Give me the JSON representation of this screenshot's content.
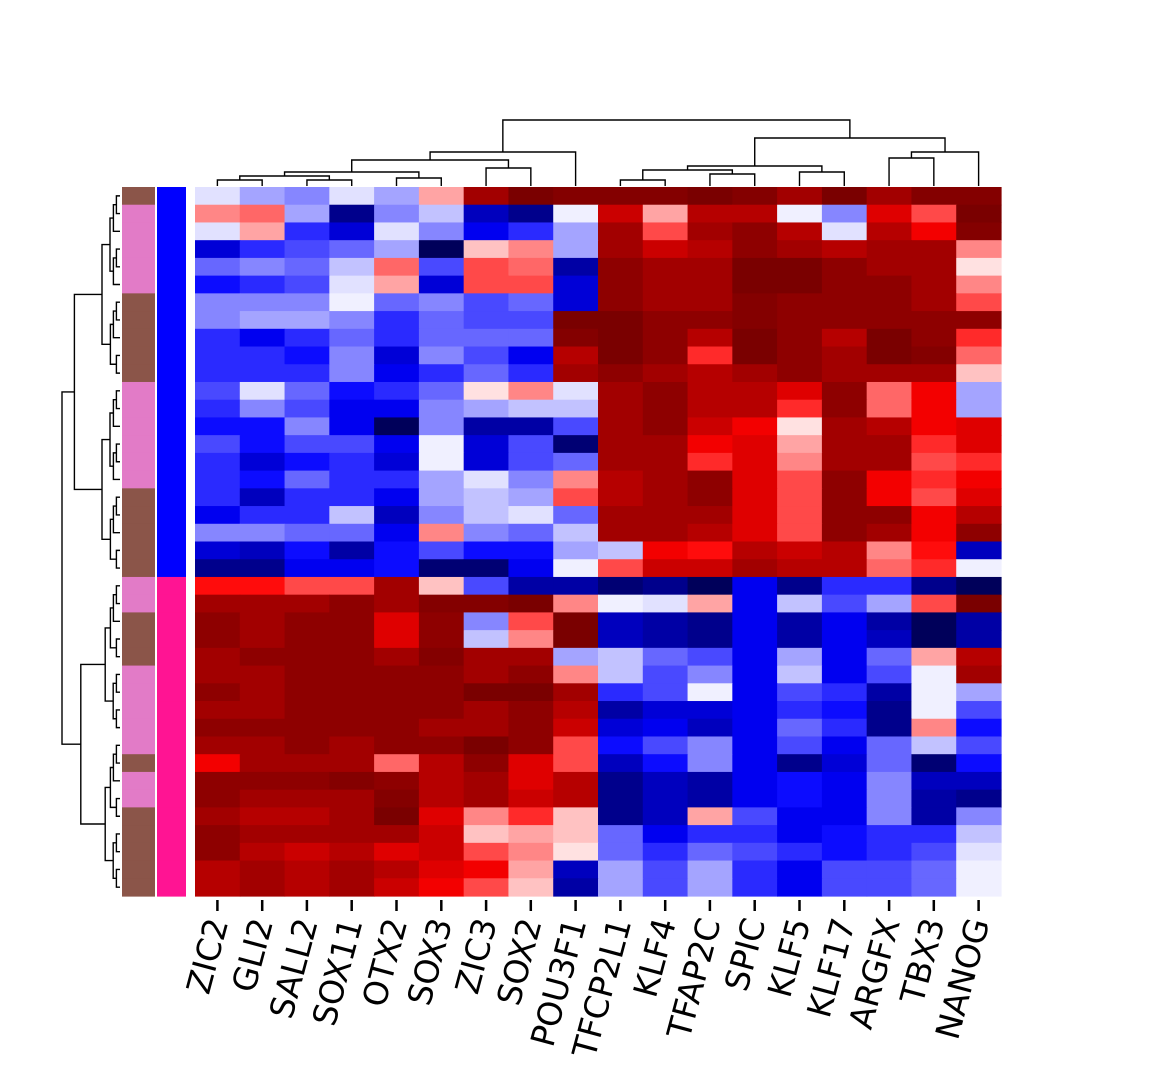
{
  "chart_data": {
    "type": "heatmap",
    "title": "",
    "xlabel": "",
    "ylabel": "",
    "columns": [
      "ZIC2",
      "GLI2",
      "SALL2",
      "SOX11",
      "OTX2",
      "SOX3",
      "ZIC3",
      "SOX2",
      "POU3F1",
      "TFCP2L1",
      "KLF4",
      "TFAP2C",
      "SPIC",
      "KLF5",
      "KLF17",
      "ARGFX",
      "TBX3",
      "NANOG"
    ],
    "value_range": [
      -3,
      3
    ],
    "colormap": [
      "#00005a",
      "#0000ff",
      "#ffffff",
      "#ff0000",
      "#7a0000"
    ],
    "row_annotation_colors": {
      "brown": "#8b5549",
      "pink": "#e27bc7"
    },
    "group_colors": {
      "blue": "#0000ff",
      "magenta": "#ff1493"
    },
    "row_annotations": [
      "brown",
      "pink",
      "pink",
      "pink",
      "pink",
      "pink",
      "brown",
      "brown",
      "brown",
      "brown",
      "brown",
      "pink",
      "pink",
      "pink",
      "pink",
      "pink",
      "pink",
      "brown",
      "brown",
      "brown",
      "brown",
      "brown",
      "pink",
      "pink",
      "brown",
      "brown",
      "brown",
      "pink",
      "pink",
      "pink",
      "pink",
      "pink",
      "brown",
      "pink",
      "pink",
      "brown",
      "brown",
      "brown",
      "brown",
      "brown"
    ],
    "row_groups": [
      "blue",
      "blue",
      "blue",
      "blue",
      "blue",
      "blue",
      "blue",
      "blue",
      "blue",
      "blue",
      "blue",
      "blue",
      "blue",
      "blue",
      "blue",
      "blue",
      "blue",
      "blue",
      "blue",
      "blue",
      "blue",
      "blue",
      "magenta",
      "magenta",
      "magenta",
      "magenta",
      "magenta",
      "magenta",
      "magenta",
      "magenta",
      "magenta",
      "magenta",
      "magenta",
      "magenta",
      "magenta",
      "magenta",
      "magenta",
      "magenta",
      "magenta",
      "magenta"
    ],
    "values": [
      [
        -0.2,
        -0.6,
        -0.8,
        -0.2,
        -0.6,
        0.6,
        2.6,
        3.0,
        2.9,
        2.9,
        2.9,
        3.0,
        2.9,
        2.6,
        3.0,
        2.6,
        2.9,
        2.9
      ],
      [
        0.8,
        1.0,
        -0.6,
        -2.6,
        -0.8,
        -0.4,
        -2.2,
        -2.6,
        -0.1,
        2.2,
        0.6,
        2.4,
        2.4,
        -0.1,
        -0.8,
        2.0,
        1.2,
        3.1
      ],
      [
        -0.2,
        0.6,
        -1.4,
        -2.0,
        -0.2,
        -0.8,
        -1.8,
        -1.4,
        -0.6,
        2.6,
        1.2,
        2.6,
        2.8,
        2.4,
        -0.2,
        2.4,
        1.8,
        2.9
      ],
      [
        -2.0,
        -1.4,
        -1.2,
        -1.0,
        -0.6,
        -3.2,
        0.4,
        0.8,
        -0.6,
        2.6,
        2.2,
        2.4,
        2.8,
        2.6,
        2.4,
        2.6,
        2.6,
        0.8
      ],
      [
        -1.0,
        -0.8,
        -1.0,
        -0.4,
        1.0,
        -1.2,
        1.2,
        1.0,
        -2.4,
        2.8,
        2.6,
        2.6,
        3.0,
        3.1,
        2.8,
        2.6,
        2.6,
        0.2
      ],
      [
        -1.6,
        -1.4,
        -1.2,
        -0.2,
        0.6,
        -2.0,
        1.2,
        1.2,
        -2.0,
        2.8,
        2.6,
        2.6,
        3.0,
        3.1,
        2.8,
        2.8,
        2.6,
        0.8
      ],
      [
        -0.8,
        -0.8,
        -0.8,
        -0.1,
        -1.0,
        -0.8,
        -1.2,
        -1.0,
        -2.0,
        2.8,
        2.6,
        2.6,
        2.9,
        2.8,
        2.8,
        2.8,
        2.6,
        1.2
      ],
      [
        -0.8,
        -0.6,
        -0.6,
        -0.8,
        -1.4,
        -1.0,
        -1.2,
        -1.2,
        3.0,
        3.0,
        2.8,
        2.8,
        2.9,
        2.8,
        2.8,
        2.8,
        2.8,
        2.8
      ],
      [
        -1.4,
        -1.8,
        -1.4,
        -1.0,
        -1.4,
        -1.0,
        -1.0,
        -1.0,
        2.9,
        3.0,
        2.8,
        2.4,
        3.0,
        2.8,
        2.4,
        3.0,
        2.8,
        1.4
      ],
      [
        -1.4,
        -1.4,
        -1.6,
        -0.8,
        -2.0,
        -0.8,
        -1.2,
        -1.8,
        2.4,
        3.0,
        2.8,
        1.4,
        3.0,
        2.8,
        2.6,
        3.0,
        2.9,
        1.0
      ],
      [
        -1.4,
        -1.4,
        -1.4,
        -0.8,
        -1.8,
        -1.4,
        -1.0,
        -1.4,
        2.6,
        2.8,
        2.6,
        2.4,
        2.6,
        2.8,
        2.6,
        2.6,
        2.6,
        0.4
      ],
      [
        -1.2,
        -0.2,
        -1.0,
        -1.6,
        -1.4,
        -1.0,
        0.2,
        0.8,
        -0.2,
        2.6,
        2.8,
        2.4,
        2.4,
        2.0,
        2.8,
        1.0,
        1.8,
        -0.6
      ],
      [
        -1.4,
        -0.8,
        -1.2,
        -1.8,
        -1.8,
        -0.8,
        -0.6,
        -0.4,
        -0.4,
        2.6,
        2.8,
        2.4,
        2.4,
        1.4,
        2.8,
        1.0,
        1.8,
        -0.6
      ],
      [
        -1.6,
        -1.6,
        -0.8,
        -1.8,
        -3.0,
        -0.8,
        -2.4,
        -2.4,
        -1.2,
        2.6,
        2.8,
        2.2,
        1.8,
        0.2,
        2.6,
        2.4,
        1.8,
        2.0
      ],
      [
        -1.2,
        -1.6,
        -1.2,
        -1.2,
        -1.8,
        -0.1,
        -2.0,
        -1.2,
        -2.8,
        2.6,
        2.6,
        1.8,
        2.0,
        0.6,
        2.6,
        2.6,
        1.4,
        2.0
      ],
      [
        -1.4,
        -2.0,
        -1.6,
        -1.4,
        -2.0,
        -0.1,
        -2.0,
        -1.2,
        -1.0,
        2.6,
        2.6,
        1.4,
        2.0,
        0.8,
        2.6,
        2.6,
        1.2,
        1.4
      ],
      [
        -1.4,
        -1.6,
        -1.0,
        -1.4,
        -1.4,
        -0.6,
        -0.2,
        -0.8,
        0.8,
        2.4,
        2.6,
        2.8,
        2.0,
        1.2,
        2.8,
        1.8,
        1.4,
        1.8
      ],
      [
        -1.4,
        -2.2,
        -1.4,
        -1.4,
        -1.8,
        -0.6,
        -0.4,
        -0.6,
        1.2,
        2.4,
        2.6,
        2.8,
        2.0,
        1.2,
        2.8,
        1.8,
        1.2,
        2.0
      ],
      [
        -1.8,
        -1.4,
        -1.4,
        -0.4,
        -2.2,
        -0.8,
        -0.4,
        -0.2,
        -1.0,
        2.6,
        2.6,
        2.6,
        2.0,
        1.2,
        2.8,
        2.8,
        1.8,
        2.4
      ],
      [
        -0.8,
        -0.8,
        -1.0,
        -1.0,
        -1.8,
        0.8,
        -0.8,
        -1.0,
        -0.4,
        2.6,
        2.6,
        2.4,
        2.0,
        1.2,
        2.8,
        2.6,
        1.8,
        2.8
      ],
      [
        -2.0,
        -2.2,
        -1.6,
        -2.4,
        -1.6,
        -1.2,
        -1.6,
        -1.6,
        -0.6,
        -0.4,
        1.8,
        1.6,
        2.4,
        2.2,
        2.4,
        0.8,
        1.6,
        -2.2
      ],
      [
        -2.6,
        -2.6,
        -1.8,
        -1.8,
        -1.6,
        -2.8,
        -2.8,
        -1.8,
        -0.1,
        1.2,
        2.2,
        2.2,
        2.6,
        2.4,
        2.4,
        1.0,
        1.4,
        -0.1
      ],
      [
        1.6,
        1.6,
        1.2,
        1.2,
        2.6,
        0.4,
        -1.2,
        -2.4,
        -2.4,
        -2.8,
        -2.6,
        -3.0,
        -1.8,
        -2.6,
        -1.4,
        -1.4,
        -2.6,
        -3.0
      ],
      [
        2.6,
        2.6,
        2.6,
        2.8,
        2.6,
        2.9,
        2.9,
        3.0,
        0.8,
        -0.1,
        -0.2,
        0.6,
        -1.8,
        -0.4,
        -1.2,
        -0.6,
        1.2,
        3.0
      ],
      [
        2.8,
        2.6,
        2.8,
        2.8,
        2.0,
        2.8,
        -0.8,
        1.2,
        3.0,
        -2.2,
        -2.4,
        -2.6,
        -1.8,
        -2.4,
        -1.8,
        -2.4,
        -3.2,
        -2.4
      ],
      [
        2.8,
        2.6,
        2.8,
        2.8,
        2.0,
        2.8,
        -0.4,
        0.8,
        3.0,
        -2.2,
        -2.4,
        -2.6,
        -1.8,
        -2.4,
        -1.8,
        -2.2,
        -3.2,
        -2.4
      ],
      [
        2.6,
        2.8,
        2.8,
        2.8,
        2.6,
        2.9,
        2.6,
        2.6,
        -0.6,
        -0.4,
        -1.0,
        -1.2,
        -1.8,
        -0.6,
        -1.8,
        -1.0,
        0.6,
        2.4
      ],
      [
        2.6,
        2.6,
        2.8,
        2.8,
        2.8,
        2.8,
        2.6,
        2.8,
        0.8,
        -0.4,
        -1.2,
        -0.8,
        -1.8,
        -0.4,
        -1.8,
        -1.2,
        -0.1,
        2.6
      ],
      [
        2.8,
        2.6,
        2.8,
        2.8,
        2.8,
        2.8,
        3.0,
        3.1,
        2.6,
        -1.4,
        -1.2,
        -0.1,
        -1.8,
        -1.2,
        -1.4,
        -2.4,
        -0.1,
        -0.6
      ],
      [
        2.6,
        2.6,
        2.8,
        2.8,
        2.8,
        2.8,
        2.6,
        2.8,
        2.4,
        -2.4,
        -2.0,
        -2.0,
        -1.8,
        -1.4,
        -1.6,
        -2.6,
        -0.1,
        -1.2
      ],
      [
        2.8,
        2.8,
        2.8,
        2.8,
        2.8,
        2.6,
        2.6,
        2.8,
        2.2,
        -2.0,
        -1.8,
        -2.2,
        -1.8,
        -1.0,
        -1.4,
        -2.6,
        0.8,
        -1.6
      ],
      [
        2.6,
        2.6,
        2.8,
        2.6,
        2.8,
        2.8,
        3.1,
        2.8,
        1.2,
        -1.6,
        -1.2,
        -0.8,
        -1.8,
        -1.2,
        -1.8,
        -1.0,
        -0.4,
        -1.2
      ],
      [
        1.8,
        2.6,
        2.6,
        2.6,
        1.0,
        2.4,
        2.8,
        2.0,
        1.2,
        -2.2,
        -1.6,
        -0.8,
        -1.8,
        -2.6,
        -2.0,
        -1.0,
        -2.8,
        -1.6
      ],
      [
        2.8,
        2.8,
        2.8,
        2.9,
        2.8,
        2.4,
        2.6,
        2.0,
        2.4,
        -2.6,
        -2.2,
        -2.4,
        -1.8,
        -1.6,
        -1.8,
        -0.8,
        -2.2,
        -2.2
      ],
      [
        2.8,
        2.6,
        2.6,
        2.6,
        2.9,
        2.4,
        2.6,
        2.2,
        2.4,
        -2.6,
        -2.2,
        -2.4,
        -1.8,
        -1.6,
        -1.8,
        -0.8,
        -2.4,
        -2.6
      ],
      [
        2.6,
        2.4,
        2.4,
        2.6,
        3.0,
        2.0,
        0.8,
        1.4,
        0.4,
        -2.6,
        -2.2,
        0.6,
        -1.2,
        -1.8,
        -1.8,
        -0.8,
        -2.4,
        -0.8
      ],
      [
        2.8,
        2.6,
        2.6,
        2.6,
        2.6,
        2.2,
        0.4,
        0.6,
        0.4,
        -1.0,
        -1.8,
        -1.4,
        -1.4,
        -1.8,
        -1.6,
        -1.4,
        -1.4,
        -0.4
      ],
      [
        2.8,
        2.4,
        2.2,
        2.4,
        2.0,
        2.2,
        1.2,
        0.8,
        0.2,
        -1.0,
        -1.4,
        -1.0,
        -1.2,
        -1.4,
        -1.6,
        -1.4,
        -1.2,
        -0.2
      ],
      [
        2.4,
        2.6,
        2.4,
        2.6,
        2.4,
        2.0,
        1.8,
        0.6,
        -2.2,
        -0.6,
        -1.2,
        -0.6,
        -1.4,
        -1.8,
        -1.2,
        -1.2,
        -1.0,
        -0.1
      ],
      [
        2.4,
        2.6,
        2.4,
        2.6,
        2.2,
        1.8,
        1.2,
        0.4,
        -2.4,
        -0.6,
        -1.2,
        -0.6,
        -1.4,
        -1.8,
        -1.2,
        -1.2,
        -1.0,
        -0.1
      ]
    ]
  }
}
